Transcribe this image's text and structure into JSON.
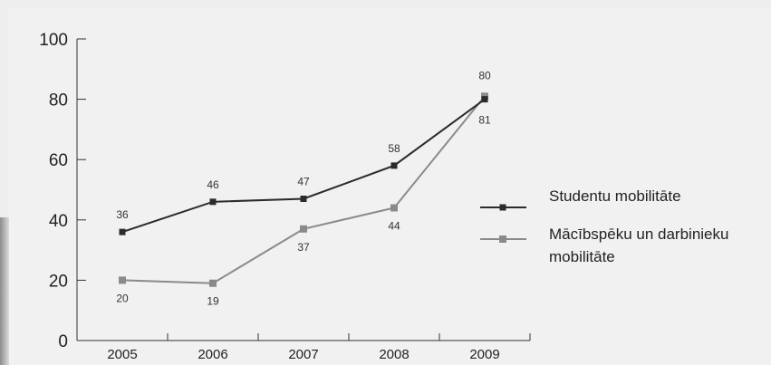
{
  "chart_data": {
    "type": "line",
    "x": [
      "2005",
      "2006",
      "2007",
      "2008",
      "2009"
    ],
    "y_ticks": [
      "0",
      "20",
      "40",
      "60",
      "80",
      "100"
    ],
    "ylim": [
      0,
      100
    ],
    "grid": false,
    "legend_position": "right",
    "series": [
      {
        "name": "Studentu mobilitāte",
        "values": [
          36,
          46,
          47,
          58,
          80
        ],
        "labels": [
          "36",
          "46",
          "47",
          "58",
          "80"
        ],
        "color": "#2b2b2b"
      },
      {
        "name": "Mācībspēku un darbinieku mobilitāte",
        "legend_lines": [
          "Mācībspēku un darbinieku",
          "mobilitāte"
        ],
        "values": [
          20,
          19,
          37,
          44,
          81
        ],
        "labels": [
          "20",
          "19",
          "37",
          "44",
          "81"
        ],
        "color": "#8a8a8a"
      }
    ]
  }
}
